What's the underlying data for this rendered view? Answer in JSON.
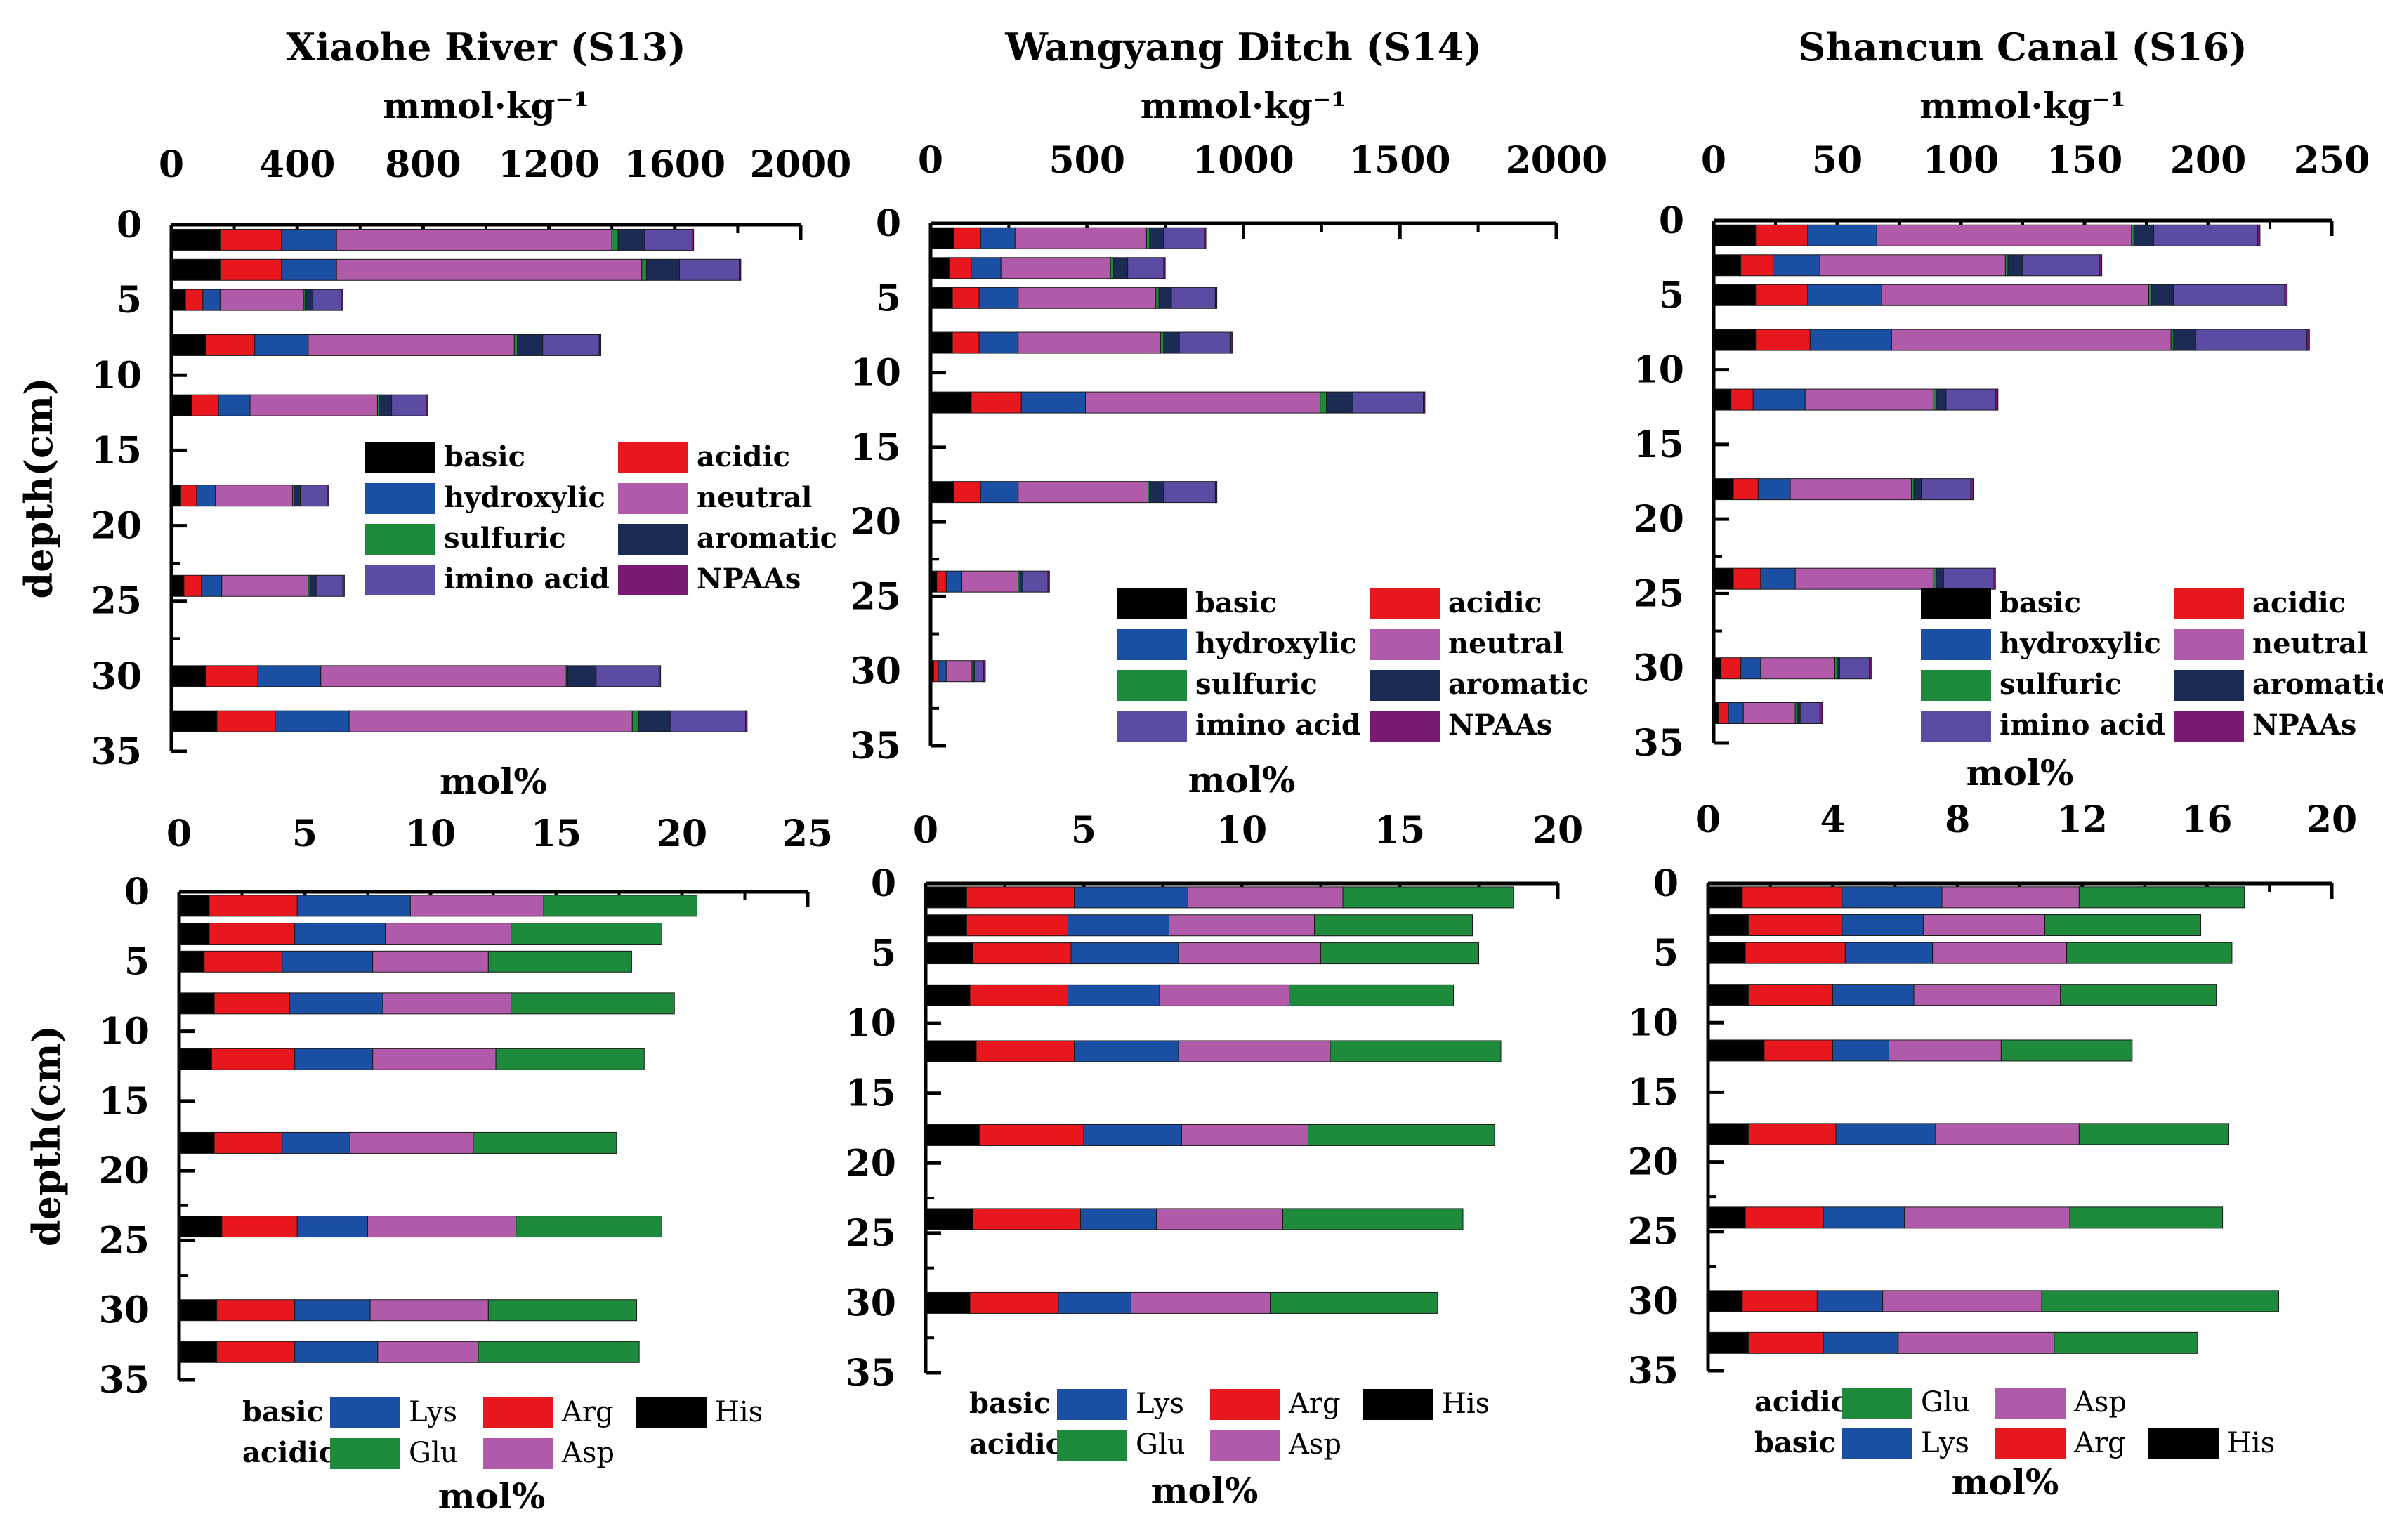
{
  "colors": {
    "basic": "#000000",
    "acidic": "#e8171e",
    "hydroxylic": "#1a4fa3",
    "neutral": "#b15aa9",
    "sulfuric": "#1d8b3b",
    "aromatic": "#1c2b54",
    "imino_acid": "#5b4ba3",
    "NPAAs": "#7a1a72",
    "His": "#000000",
    "Arg": "#e8171e",
    "Lys": "#1a4fa3",
    "Asp": "#b15aa9",
    "Glu": "#1d8b3b"
  },
  "chart_data": [
    {
      "type": "bar",
      "orientation": "horizontal",
      "stacked": true,
      "title": "Xiaohe River (S13)",
      "xlabel": "mmol·kg⁻¹",
      "ylabel": "depth(cm)",
      "xlim": [
        0,
        2000
      ],
      "xticks": [
        0,
        400,
        800,
        1200,
        1600,
        2000
      ],
      "ylim": [
        0,
        35
      ],
      "yticks": [
        0,
        5,
        10,
        15,
        20,
        25,
        30,
        35
      ],
      "depths": [
        1,
        3,
        5,
        8,
        12,
        18,
        24,
        30,
        33
      ],
      "series": [
        {
          "name": "basic",
          "color_key": "basic",
          "values": [
            155,
            155,
            45,
            110,
            65,
            30,
            40,
            110,
            145
          ]
        },
        {
          "name": "acidic",
          "color_key": "acidic",
          "values": [
            195,
            195,
            55,
            155,
            85,
            50,
            55,
            165,
            185
          ]
        },
        {
          "name": "hydroxylic",
          "color_key": "hydroxylic",
          "values": [
            175,
            175,
            55,
            170,
            100,
            60,
            65,
            200,
            235
          ]
        },
        {
          "name": "neutral",
          "color_key": "neutral",
          "values": [
            875,
            970,
            265,
            655,
            405,
            245,
            275,
            780,
            900
          ]
        },
        {
          "name": "sulfuric",
          "color_key": "sulfuric",
          "values": [
            20,
            15,
            5,
            10,
            5,
            5,
            5,
            5,
            20
          ]
        },
        {
          "name": "aromatic",
          "color_key": "aromatic",
          "values": [
            85,
            105,
            25,
            80,
            40,
            20,
            20,
            90,
            100
          ]
        },
        {
          "name": "imino acid",
          "color_key": "imino_acid",
          "values": [
            150,
            190,
            90,
            180,
            110,
            85,
            85,
            200,
            240
          ]
        },
        {
          "name": "NPAAs",
          "color_key": "NPAAs",
          "values": [
            5,
            5,
            5,
            5,
            5,
            5,
            5,
            5,
            5
          ]
        }
      ],
      "legend": [
        "basic",
        "acidic",
        "hydroxylic",
        "neutral",
        "sulfuric",
        "aromatic",
        "imino acid",
        "NPAAs"
      ]
    },
    {
      "type": "bar",
      "orientation": "horizontal",
      "stacked": true,
      "title": "Wangyang Ditch (S14)",
      "xlabel": "mmol·kg⁻¹",
      "ylabel": "",
      "xlim": [
        0,
        2000
      ],
      "xticks": [
        0,
        500,
        1000,
        1500,
        2000
      ],
      "ylim": [
        0,
        35
      ],
      "yticks": [
        0,
        5,
        10,
        15,
        20,
        25,
        30,
        35
      ],
      "depths": [
        1,
        3,
        5,
        8,
        12,
        18,
        24,
        30
      ],
      "series": [
        {
          "name": "basic",
          "color_key": "basic",
          "values": [
            75,
            60,
            70,
            70,
            130,
            75,
            20,
            10
          ]
        },
        {
          "name": "acidic",
          "color_key": "acidic",
          "values": [
            85,
            70,
            85,
            85,
            160,
            85,
            30,
            15
          ]
        },
        {
          "name": "hydroxylic",
          "color_key": "hydroxylic",
          "values": [
            110,
            95,
            125,
            125,
            205,
            120,
            50,
            25
          ]
        },
        {
          "name": "neutral",
          "color_key": "neutral",
          "values": [
            420,
            350,
            440,
            455,
            750,
            415,
            180,
            80
          ]
        },
        {
          "name": "sulfuric",
          "color_key": "sulfuric",
          "values": [
            10,
            10,
            10,
            10,
            20,
            5,
            5,
            5
          ]
        },
        {
          "name": "aromatic",
          "color_key": "aromatic",
          "values": [
            45,
            45,
            40,
            50,
            85,
            45,
            10,
            5
          ]
        },
        {
          "name": "imino acid",
          "color_key": "imino_acid",
          "values": [
            130,
            115,
            140,
            165,
            225,
            165,
            80,
            30
          ]
        },
        {
          "name": "NPAAs",
          "color_key": "NPAAs",
          "values": [
            5,
            5,
            5,
            5,
            5,
            5,
            5,
            5
          ]
        }
      ],
      "legend": [
        "basic",
        "acidic",
        "hydroxylic",
        "neutral",
        "sulfuric",
        "aromatic",
        "imino acid",
        "NPAAs"
      ]
    },
    {
      "type": "bar",
      "orientation": "horizontal",
      "stacked": true,
      "title": "Shancun Canal (S16)",
      "xlabel": "mmol·kg⁻¹",
      "ylabel": "",
      "xlim": [
        0,
        250
      ],
      "xticks": [
        0,
        50,
        100,
        150,
        200,
        250
      ],
      "ylim": [
        0,
        35
      ],
      "yticks": [
        0,
        5,
        10,
        15,
        20,
        25,
        30,
        35
      ],
      "depths": [
        1,
        3,
        5,
        8,
        12,
        18,
        24,
        30,
        33
      ],
      "series": [
        {
          "name": "basic",
          "color_key": "basic",
          "values": [
            17,
            11,
            17,
            17,
            7,
            8,
            8,
            3,
            2
          ]
        },
        {
          "name": "acidic",
          "color_key": "acidic",
          "values": [
            21,
            13,
            21,
            22,
            9,
            10,
            11,
            8,
            4
          ]
        },
        {
          "name": "hydroxylic",
          "color_key": "hydroxylic",
          "values": [
            28,
            19,
            30,
            33,
            21,
            13,
            14,
            8,
            6
          ]
        },
        {
          "name": "neutral",
          "color_key": "neutral",
          "values": [
            103,
            75,
            108,
            113,
            52,
            49,
            56,
            30,
            21
          ]
        },
        {
          "name": "sulfuric",
          "color_key": "sulfuric",
          "values": [
            1,
            1,
            1,
            1,
            1,
            1,
            1,
            1,
            1
          ]
        },
        {
          "name": "aromatic",
          "color_key": "aromatic",
          "values": [
            8,
            6,
            9,
            9,
            4,
            3,
            3,
            1,
            1
          ]
        },
        {
          "name": "imino acid",
          "color_key": "imino_acid",
          "values": [
            42,
            31,
            45,
            45,
            20,
            20,
            20,
            12,
            8
          ]
        },
        {
          "name": "NPAAs",
          "color_key": "NPAAs",
          "values": [
            1,
            1,
            1,
            1,
            1,
            1,
            1,
            1,
            1
          ]
        }
      ],
      "legend": [
        "basic",
        "acidic",
        "hydroxylic",
        "neutral",
        "sulfuric",
        "aromatic",
        "imino acid",
        "NPAAs"
      ]
    },
    {
      "type": "bar",
      "orientation": "horizontal",
      "stacked": true,
      "title": "",
      "xlabel": "mol%",
      "ylabel": "depth(cm)",
      "xlim": [
        0,
        25
      ],
      "xticks": [
        0,
        5,
        10,
        15,
        20,
        25
      ],
      "ylim": [
        0,
        35
      ],
      "yticks": [
        0,
        5,
        10,
        15,
        20,
        25,
        30,
        35
      ],
      "depths": [
        1,
        3,
        5,
        8,
        12,
        18,
        24,
        30,
        33
      ],
      "series": [
        {
          "name": "His",
          "color_key": "His",
          "values": [
            1.2,
            1.2,
            1.0,
            1.4,
            1.3,
            1.4,
            1.7,
            1.5,
            1.5
          ]
        },
        {
          "name": "Arg",
          "color_key": "Arg",
          "values": [
            3.5,
            3.4,
            3.1,
            3.0,
            3.3,
            2.7,
            3.0,
            3.1,
            3.1
          ]
        },
        {
          "name": "Lys",
          "color_key": "Lys",
          "values": [
            4.5,
            3.6,
            3.6,
            3.7,
            3.1,
            2.7,
            2.8,
            3.0,
            3.3
          ]
        },
        {
          "name": "Asp",
          "color_key": "Asp",
          "values": [
            5.3,
            5.0,
            4.6,
            5.1,
            4.9,
            4.9,
            5.9,
            4.7,
            4.0
          ]
        },
        {
          "name": "Glu",
          "color_key": "Glu",
          "values": [
            6.1,
            6.0,
            5.7,
            6.5,
            5.9,
            5.7,
            5.8,
            5.9,
            6.4
          ]
        }
      ],
      "legend_rows": [
        {
          "label": "basic",
          "items": [
            "Lys",
            "Arg",
            "His"
          ]
        },
        {
          "label": "acidic",
          "items": [
            "Glu",
            "Asp"
          ]
        }
      ]
    },
    {
      "type": "bar",
      "orientation": "horizontal",
      "stacked": true,
      "title": "",
      "xlabel": "mol%",
      "ylabel": "",
      "xlim": [
        0,
        20
      ],
      "xticks": [
        0,
        5,
        10,
        15,
        20
      ],
      "ylim": [
        0,
        35
      ],
      "yticks": [
        0,
        5,
        10,
        15,
        20,
        25,
        30,
        35
      ],
      "depths": [
        1,
        3,
        5,
        8,
        12,
        18,
        24,
        30
      ],
      "series": [
        {
          "name": "His",
          "color_key": "His",
          "values": [
            1.3,
            1.3,
            1.5,
            1.4,
            1.6,
            1.7,
            1.5,
            1.4
          ]
        },
        {
          "name": "Arg",
          "color_key": "Arg",
          "values": [
            3.4,
            3.2,
            3.1,
            3.1,
            3.1,
            3.3,
            3.4,
            2.8
          ]
        },
        {
          "name": "Lys",
          "color_key": "Lys",
          "values": [
            3.6,
            3.2,
            3.4,
            2.9,
            3.3,
            3.1,
            2.4,
            2.3
          ]
        },
        {
          "name": "Asp",
          "color_key": "Asp",
          "values": [
            4.9,
            4.6,
            4.5,
            4.1,
            4.8,
            4.0,
            4.0,
            4.4
          ]
        },
        {
          "name": "Glu",
          "color_key": "Glu",
          "values": [
            5.4,
            5.0,
            5.0,
            5.2,
            5.4,
            5.9,
            5.7,
            5.3
          ]
        }
      ],
      "legend_rows": [
        {
          "label": "basic",
          "items": [
            "Lys",
            "Arg",
            "His"
          ]
        },
        {
          "label": "acidic",
          "items": [
            "Glu",
            "Asp"
          ]
        }
      ]
    },
    {
      "type": "bar",
      "orientation": "horizontal",
      "stacked": true,
      "title": "",
      "xlabel": "mol%",
      "ylabel": "",
      "xlim": [
        0,
        20
      ],
      "xticks": [
        0,
        4,
        8,
        12,
        16,
        20
      ],
      "ylim": [
        0,
        35
      ],
      "yticks": [
        0,
        5,
        10,
        15,
        20,
        25,
        30,
        35
      ],
      "depths": [
        1,
        3,
        5,
        8,
        12,
        18,
        24,
        30,
        33
      ],
      "series": [
        {
          "name": "His",
          "color_key": "His",
          "values": [
            1.1,
            1.3,
            1.2,
            1.3,
            1.8,
            1.3,
            1.2,
            1.1,
            1.3
          ]
        },
        {
          "name": "Arg",
          "color_key": "Arg",
          "values": [
            3.2,
            3.0,
            3.2,
            2.7,
            2.2,
            2.8,
            2.5,
            2.4,
            2.4
          ]
        },
        {
          "name": "Lys",
          "color_key": "Lys",
          "values": [
            3.2,
            2.6,
            2.8,
            2.6,
            1.8,
            3.2,
            2.6,
            2.1,
            2.4
          ]
        },
        {
          "name": "Asp",
          "color_key": "Asp",
          "values": [
            4.4,
            3.9,
            4.3,
            4.7,
            3.6,
            4.6,
            5.3,
            5.1,
            5.0
          ]
        },
        {
          "name": "Glu",
          "color_key": "Glu",
          "values": [
            5.3,
            5.0,
            5.3,
            5.0,
            4.2,
            4.8,
            4.9,
            7.6,
            4.6
          ]
        }
      ],
      "legend_rows": [
        {
          "label": "acidic",
          "items": [
            "Glu",
            "Asp"
          ]
        },
        {
          "label": "basic",
          "items": [
            "Lys",
            "Arg",
            "His"
          ]
        }
      ]
    }
  ]
}
